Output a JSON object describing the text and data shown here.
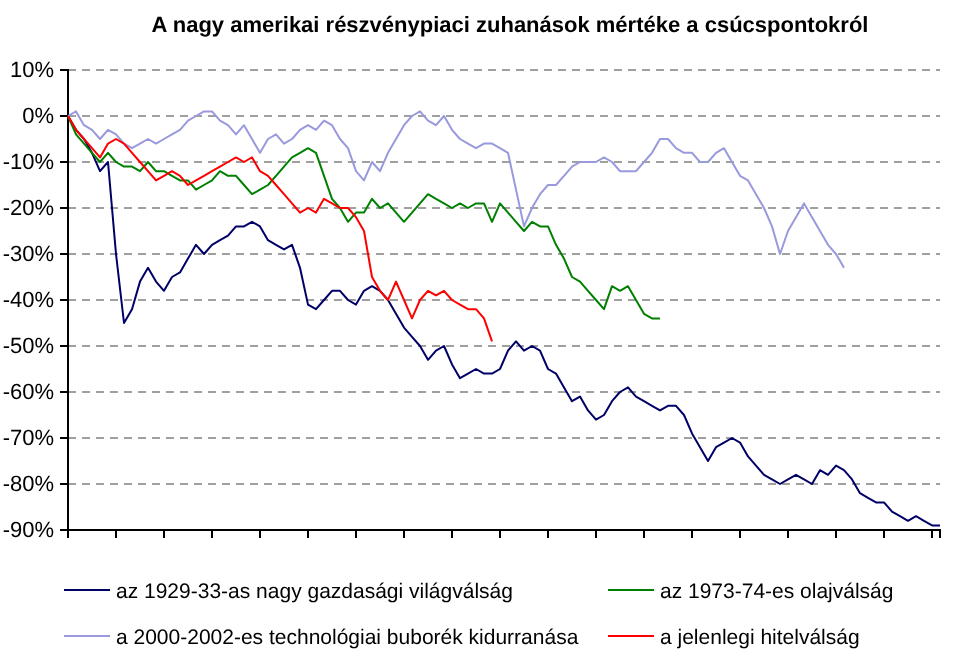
{
  "chart_data": {
    "type": "line",
    "title": "A nagy amerikai részvénypiaci zuhanások mértéke a csúcspontokról",
    "categories": [
      null,
      null,
      null,
      null,
      null,
      null,
      null,
      null,
      null,
      null,
      null,
      null,
      null,
      null,
      null,
      null,
      null,
      null,
      null,
      null,
      null,
      null,
      null,
      null,
      null,
      null,
      null,
      null,
      null,
      null,
      null,
      null,
      null,
      null,
      null,
      null,
      null,
      null,
      null,
      null,
      null,
      null,
      null,
      null,
      null,
      null,
      null,
      null,
      null,
      null,
      null,
      null,
      null,
      null,
      null,
      null,
      null,
      null,
      null,
      null,
      null,
      null,
      null,
      null,
      null,
      null,
      null,
      null,
      null,
      null,
      null,
      null,
      null,
      null,
      null,
      null,
      null,
      null,
      null,
      null,
      null,
      null,
      null,
      null,
      null,
      null,
      null,
      null,
      null,
      null,
      null,
      null,
      null,
      null,
      null,
      null,
      null,
      null,
      null,
      null,
      null,
      null,
      null,
      null,
      null,
      null,
      null,
      null,
      null,
      null
    ],
    "series": [
      {
        "name": "az 1929-33-as nagy gazdasági világválság",
        "color": "#000066",
        "values": [
          0,
          -3,
          -5,
          -8,
          -12,
          -10,
          -30,
          -45,
          -42,
          -36,
          -33,
          -36,
          -38,
          -35,
          -34,
          -31,
          -28,
          -30,
          -28,
          -27,
          -26,
          -24,
          -24,
          -23,
          -24,
          -27,
          -28,
          -29,
          -28,
          -33,
          -41,
          -42,
          -40,
          -38,
          -38,
          -40,
          -41,
          -38,
          -37,
          -38,
          -40,
          -43,
          -46,
          -48,
          -50,
          -53,
          -51,
          -50,
          -54,
          -57,
          -56,
          -55,
          -56,
          -56,
          -55,
          -51,
          -49,
          -51,
          -50,
          -51,
          -55,
          -56,
          -59,
          -62,
          -61,
          -64,
          -66,
          -65,
          -62,
          -60,
          -59,
          -61,
          -62,
          -63,
          -64,
          -63,
          -63,
          -65,
          -69,
          -72,
          -75,
          -72,
          -71,
          -70,
          -71,
          -74,
          -76,
          -78,
          -79,
          -80,
          -79,
          -78,
          -79,
          -80,
          -77,
          -78,
          -76,
          -77,
          -79,
          -82,
          -83,
          -84,
          -84,
          -86,
          -87,
          -88,
          -87,
          -88,
          -89,
          -89
        ]
      },
      {
        "name": "az 1973-74-es olajválság",
        "color": "#008000",
        "values": [
          0,
          -4,
          -6,
          -8,
          -10,
          -8,
          -10,
          -11,
          -11,
          -12,
          -10,
          -12,
          -12,
          -13,
          -14,
          -14,
          -16,
          -15,
          -14,
          -12,
          -13,
          -13,
          -15,
          -17,
          -16,
          -15,
          -13,
          -11,
          -9,
          -8,
          -7,
          -8,
          -13,
          -18,
          -20,
          -23,
          -21,
          -21,
          -18,
          -20,
          -19,
          -21,
          -23,
          -21,
          -19,
          -17,
          -18,
          -19,
          -20,
          -19,
          -20,
          -19,
          -19,
          -23,
          -19,
          -21,
          -23,
          -25,
          -23,
          -24,
          -24,
          -28,
          -31,
          -35,
          -36,
          -38,
          -40,
          -42,
          -37,
          -38,
          -37,
          -40,
          -43,
          -44,
          -44,
          null,
          null,
          null,
          null,
          null,
          null,
          null,
          null,
          null,
          null,
          null,
          null,
          null,
          null,
          null,
          null,
          null,
          null,
          null,
          null,
          null,
          null,
          null,
          null,
          null,
          null,
          null,
          null,
          null,
          null,
          null,
          null,
          null,
          null,
          null
        ]
      },
      {
        "name": "a 2000-2002-es technológiai buborék kidurranása",
        "color": "#9999dd",
        "values": [
          0,
          1,
          -2,
          -3,
          -5,
          -3,
          -4,
          -6,
          -7,
          -6,
          -5,
          -6,
          -5,
          -4,
          -3,
          -1,
          0,
          1,
          1,
          -1,
          -2,
          -4,
          -2,
          -5,
          -8,
          -5,
          -4,
          -6,
          -5,
          -3,
          -2,
          -3,
          -1,
          -2,
          -5,
          -7,
          -12,
          -14,
          -10,
          -12,
          -8,
          -5,
          -2,
          0,
          1,
          -1,
          -2,
          0,
          -3,
          -5,
          -6,
          -7,
          -6,
          -6,
          -7,
          -8,
          -16,
          -24,
          -20,
          -17,
          -15,
          -15,
          -13,
          -11,
          -10,
          -10,
          -10,
          -9,
          -10,
          -12,
          -12,
          -12,
          -10,
          -8,
          -5,
          -5,
          -7,
          -8,
          -8,
          -10,
          -10,
          -8,
          -7,
          -10,
          -13,
          -14,
          -17,
          -20,
          -24,
          -30,
          -25,
          -22,
          -19,
          -22,
          -25,
          -28,
          -30,
          -33,
          null,
          null,
          null,
          null,
          null,
          null,
          null,
          null,
          null,
          null,
          null,
          null
        ]
      },
      {
        "name": "a jelenlegi hitelválság",
        "color": "#ff0000",
        "values": [
          0,
          -3,
          -5,
          -7,
          -9,
          -6,
          -5,
          -6,
          -8,
          -10,
          -12,
          -14,
          -13,
          -12,
          -13,
          -15,
          -14,
          -13,
          -12,
          -11,
          -10,
          -9,
          -10,
          -9,
          -12,
          -13,
          -15,
          -17,
          -19,
          -21,
          -20,
          -21,
          -18,
          -19,
          -20,
          -20,
          -22,
          -25,
          -35,
          -38,
          -40,
          -36,
          -40,
          -44,
          -40,
          -38,
          -39,
          -38,
          -40,
          -41,
          -42,
          -42,
          -44,
          -49,
          null,
          null,
          null,
          null,
          null,
          null,
          null,
          null,
          null,
          null,
          null,
          null,
          null,
          null,
          null,
          null,
          null,
          null,
          null,
          null,
          null,
          null,
          null,
          null,
          null,
          null,
          null,
          null,
          null,
          null,
          null,
          null,
          null,
          null,
          null,
          null,
          null,
          null,
          null,
          null,
          null,
          null,
          null,
          null,
          null,
          null,
          null,
          null,
          null,
          null,
          null,
          null,
          null,
          null,
          null,
          null
        ]
      }
    ],
    "ylim": [
      -90,
      10
    ],
    "yticks": [
      {
        "value": 10,
        "label": "10%"
      },
      {
        "value": 0,
        "label": "0%"
      },
      {
        "value": -10,
        "label": "-10%"
      },
      {
        "value": -20,
        "label": "-20%"
      },
      {
        "value": -30,
        "label": "-30%"
      },
      {
        "value": -40,
        "label": "-40%"
      },
      {
        "value": -50,
        "label": "-50%"
      },
      {
        "value": -60,
        "label": "-60%"
      },
      {
        "value": -70,
        "label": "-70%"
      },
      {
        "value": -80,
        "label": "-80%"
      },
      {
        "value": -90,
        "label": "-90%"
      }
    ],
    "grid": "y",
    "legend": "bottom",
    "marker": "none",
    "line_style": "solid"
  }
}
